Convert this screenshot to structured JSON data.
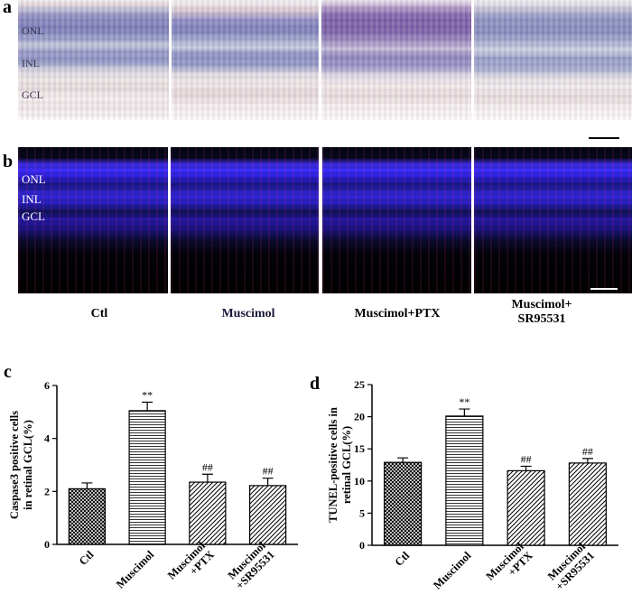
{
  "figure": {
    "panel_letters": {
      "a": "a",
      "b": "b",
      "c": "c",
      "d": "d"
    },
    "layer_labels": {
      "onl": "ONL",
      "inl": "INL",
      "gcl": "GCL"
    },
    "group_labels": [
      "Ctl",
      "Muscimol",
      "Muscimol+PTX",
      "Muscimol+\nSR95531"
    ],
    "colors": {
      "fluor_nuclei": "#3b2cff",
      "fluor_signal": "#ff3c8c",
      "histo_stain": "#7a7ab6"
    }
  },
  "chart_data": [
    {
      "type": "bar",
      "panel": "c",
      "ylabel_lines": [
        "Caspase3 positive cells",
        "in retinal GCL(%)"
      ],
      "ylim": [
        0,
        6
      ],
      "yticks": [
        "0",
        "2",
        "4",
        "6"
      ],
      "categories": [
        "Ctl",
        "Muscimol",
        "Muscimol\n+PTX",
        "Muscimol\n+SR95531"
      ],
      "values": [
        2.1,
        5.05,
        2.35,
        2.22
      ],
      "errors": [
        0.22,
        0.32,
        0.3,
        0.28
      ],
      "annotations": [
        "",
        "**",
        "##",
        "##"
      ],
      "patterns": [
        "crosshatch",
        "horizontal",
        "diagonal",
        "diagonal"
      ]
    },
    {
      "type": "bar",
      "panel": "d",
      "ylabel_lines": [
        "TUNEL-positive cells in",
        "retinal GCL(%)"
      ],
      "ylim": [
        0,
        25
      ],
      "yticks": [
        "0",
        "5",
        "10",
        "15",
        "20",
        "25"
      ],
      "categories": [
        "Ctl",
        "Muscimol",
        "Muscimol\n+PTX",
        "Muscimol\n+SR95531"
      ],
      "values": [
        12.9,
        20.1,
        11.6,
        12.8
      ],
      "errors": [
        0.7,
        1.1,
        0.7,
        0.7
      ],
      "annotations": [
        "",
        "**",
        "##",
        "##"
      ],
      "patterns": [
        "crosshatch",
        "horizontal",
        "diagonal",
        "diagonal"
      ]
    }
  ]
}
